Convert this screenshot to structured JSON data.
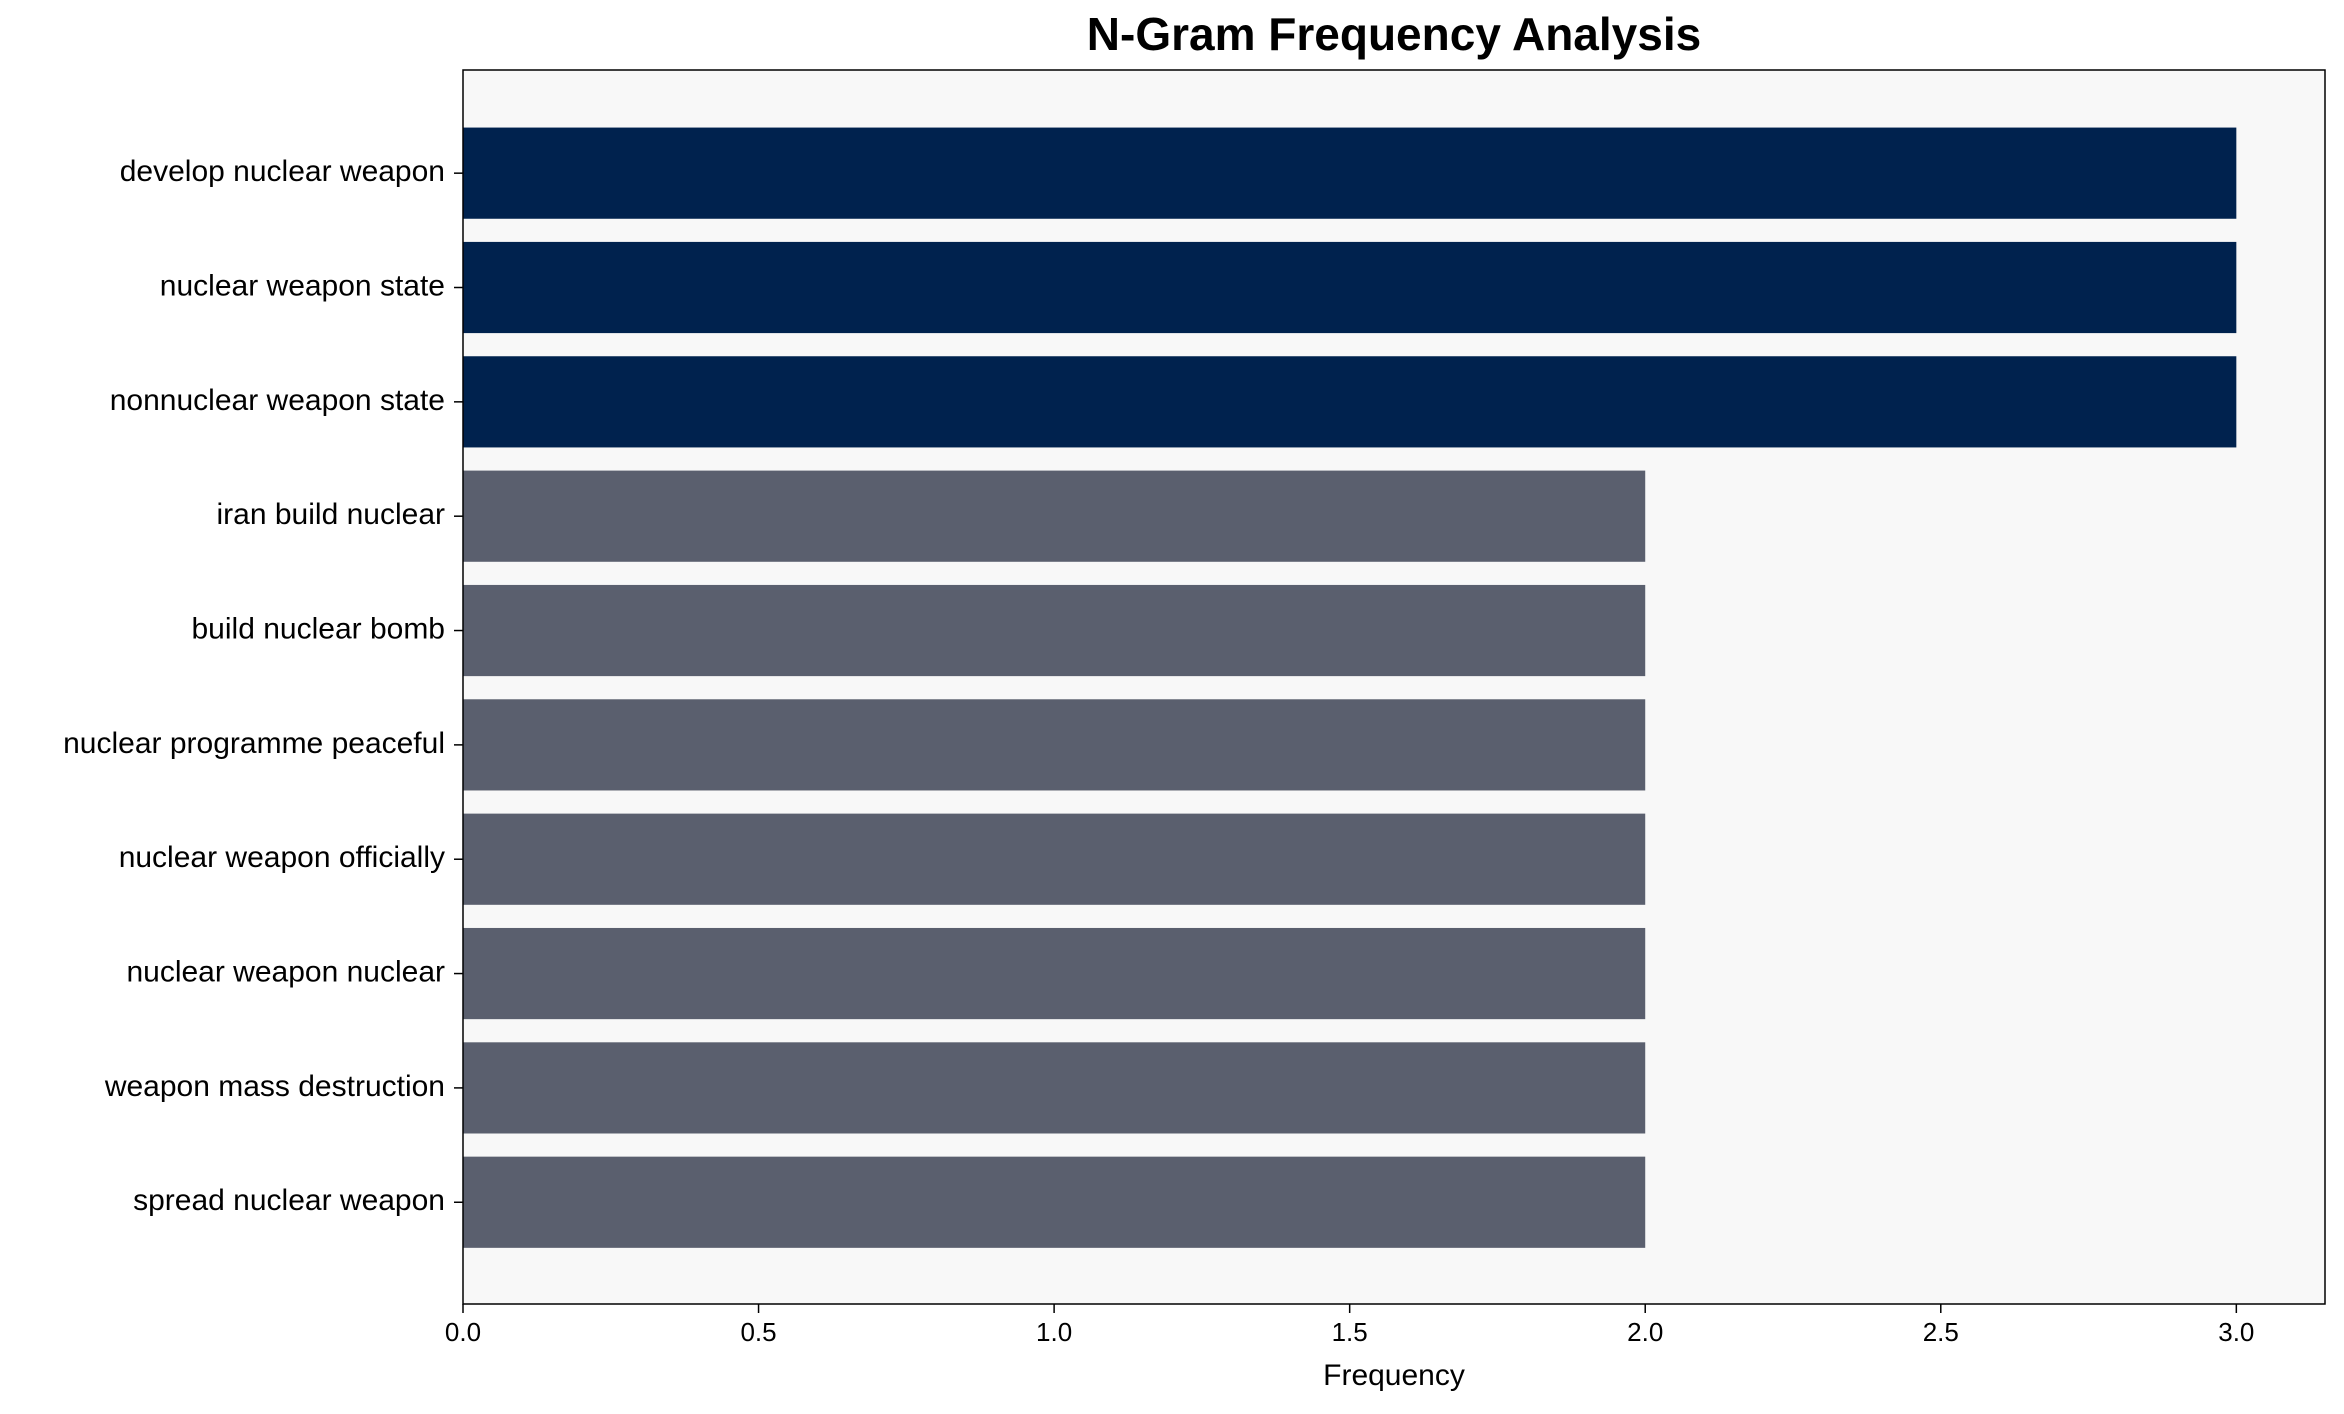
{
  "chart_data": {
    "type": "barh",
    "title": "N-Gram Frequency Analysis",
    "xlabel": "Frequency",
    "categories": [
      "develop nuclear weapon",
      "nuclear weapon state",
      "nonnuclear weapon state",
      "iran build nuclear",
      "build nuclear bomb",
      "nuclear programme peaceful",
      "nuclear weapon officially",
      "nuclear weapon nuclear",
      "weapon mass destruction",
      "spread nuclear weapon"
    ],
    "values": [
      3,
      3,
      3,
      2,
      2,
      2,
      2,
      2,
      2,
      2
    ],
    "colors": [
      "#00224e",
      "#00224e",
      "#00224e",
      "#5a5f6e",
      "#5a5f6e",
      "#5a5f6e",
      "#5a5f6e",
      "#5a5f6e",
      "#5a5f6e",
      "#5a5f6e"
    ],
    "xlim": [
      0,
      3.15
    ],
    "xticks": [
      {
        "value": 0,
        "label": "0.0"
      },
      0.5,
      {
        "value": 1,
        "label": "1.0"
      },
      1.5,
      {
        "value": 2,
        "label": "2.0"
      },
      2.5,
      {
        "value": 3,
        "label": "3.0"
      }
    ],
    "background": "#f8f8f8"
  }
}
